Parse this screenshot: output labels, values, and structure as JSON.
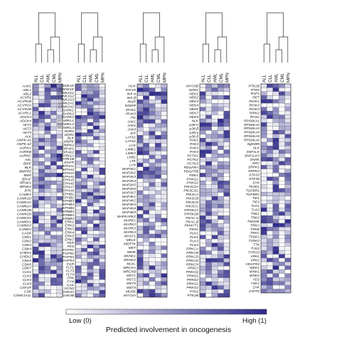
{
  "chart_data": {
    "type": "heatmap",
    "columns": [
      "ALL",
      "CLL",
      "AML",
      "CML",
      "MPN"
    ],
    "colorbar": {
      "low_label": "Low (0)",
      "high_label": "High (1)",
      "title": "Predicted involvement in oncogenesis",
      "low_color": "#ffffff",
      "high_color": "#2e2a8c"
    },
    "panels": [
      {
        "rows": [
          "AAK1",
          "ABL1",
          "ABL2",
          "ACVR1",
          "ACVR1B",
          "ACVR2A",
          "ACVR2B",
          "ACVRL1",
          "ADCK3",
          "ADCK4",
          "AKT1",
          "AKT2",
          "AKT3",
          "ALK",
          "ANPK-α1",
          "ANPK-α2",
          "AURKA",
          "AURKB",
          "AURKC",
          "AXL",
          "BIKE",
          "BLK",
          "BMPR2",
          "BMX",
          "BRAF",
          "BRSK1",
          "BRSK2",
          "BTK",
          "CAMK1",
          "CAMK1D",
          "CAMK1G",
          "CAMK2A",
          "CAMK2B",
          "CAMK2D",
          "CAMK2G",
          "CAMKK1",
          "CAMKK2",
          "CAMKV",
          "CASK",
          "CDK1",
          "CDK2",
          "CDK3",
          "CDK4",
          "CHEK1",
          "CHEK2",
          "CDK5",
          "CDK6",
          "CDK7",
          "CLK1",
          "CLK2",
          "CLK3",
          "CLK4",
          "CSF1R",
          "CSK",
          "CSNK1A1L"
        ]
      },
      {
        "rows": [
          "CSNK1D",
          "CSNK1E",
          "CSNK1G1",
          "CSNK1G2",
          "CSNK1G3",
          "CSNK2A1",
          "CSNK2A2",
          "DAPK1",
          "DAPK2",
          "DAPK3",
          "DCAMKL1",
          "DCAMKL2",
          "DCAMKL3",
          "DDR1",
          "DDR2",
          "DLK",
          "DMPK",
          "DMPK2",
          "DRAK1",
          "DRAK2",
          "DYRK1A",
          "DYRK1B",
          "EGFR",
          "EPHA1",
          "EPHA2",
          "EPHA3",
          "EPHA4",
          "EPHA5",
          "EPHA6",
          "EPHA7",
          "EPHA8",
          "EPHB1",
          "EPHB2",
          "EPHB3",
          "EPHB4",
          "EPHB6",
          "ERBB2",
          "ERBB3",
          "ERBB4",
          "ERK1",
          "ERK2",
          "ERK3",
          "ERK4",
          "ERK5",
          "ERK7",
          "FER",
          "FES",
          "FGFR1",
          "FGFR2",
          "FGFR3",
          "FGFR4",
          "FGR",
          "FLT1",
          "FLT3",
          "FLT4",
          "FRK",
          "FYN",
          "GAK",
          "GCN2",
          "GSK3A",
          "GSK3B"
        ]
      },
      {
        "rows": [
          "HCK",
          "IGF1R",
          "IKK-α",
          "IKK-β",
          "INSR",
          "INSRR",
          "IRAK1",
          "IRAK3",
          "ITK",
          "JAK1",
          "JAK2",
          "JAK3",
          "KIT",
          "LATS1",
          "LATS2",
          "LCK",
          "LIMK1",
          "LIMK2",
          "LKB1",
          "LTK",
          "LYN",
          "MAP2K1",
          "MAP2K2",
          "MAP2K3",
          "MAP2K4",
          "MAP2K5",
          "MAP2K6",
          "MAP2K7",
          "MAP4K1",
          "MAP4K2",
          "MAP4K3",
          "MAP4K4",
          "MAP4K5",
          "MAPKAPK2",
          "MARK1",
          "MARK2",
          "MARK3",
          "MARK4",
          "MAST1",
          "MELK",
          "MERTK",
          "MET",
          "MINK",
          "MKNK1",
          "MKNK2",
          "MLKL",
          "MRCKA",
          "MRCKB",
          "MST1",
          "MST2",
          "MST3",
          "MST4",
          "MUSK",
          "MYO3A"
        ]
      },
      {
        "rows": [
          "MYO3B",
          "NDR2",
          "NEK1",
          "NEK2",
          "NEK3",
          "NEK4",
          "NEK6",
          "NEK7",
          "NEK9",
          "NLK",
          "p38-α",
          "p38-β",
          "p38-γ",
          "p38-δ",
          "PAK1",
          "PAK2",
          "PAK3",
          "PAK4",
          "PCTK1",
          "PCTK2",
          "PCTK3",
          "PDGFRA",
          "PDGFRB",
          "PDK1",
          "PHKG1",
          "PHKG2",
          "PIK3C2A",
          "PIK3C2G",
          "PIK3CA",
          "PIK3CB",
          "PIK3CD",
          "PIK3CG",
          "PIP5K2A",
          "PIP5K2B",
          "PKAC-α",
          "PKAC-β",
          "PKMYT1",
          "PKN1",
          "PLK1",
          "PLK2",
          "PLK3",
          "PLK4",
          "PRKCA",
          "PRKCB",
          "PRKCD",
          "PRKCE",
          "PRKCH",
          "PRKCI",
          "PRKCQ",
          "PRKD1",
          "PRKD2",
          "PRKG1",
          "PRKG2",
          "PTK2",
          "PTK2B"
        ]
      },
      {
        "rows": [
          "PTK2B",
          "PTK6",
          "RAF1",
          "RET",
          "RIOK1",
          "RIOK2",
          "RIOK3",
          "RIPK2",
          "ROS1",
          "RPS6KA1",
          "RPS6KA2",
          "RPS6KA3",
          "RPS6KA4",
          "RPS6KA5",
          "RPS6KA6",
          "SgK085",
          "SLK",
          "SNF1LK",
          "SNF1LK2",
          "SNRK",
          "SRC",
          "SRPK1",
          "SRPK2",
          "STK33",
          "STK38",
          "SYK",
          "TESK1",
          "TGFBR1",
          "TGFBR2",
          "TIE1",
          "TIE2",
          "TLK1",
          "TLK2",
          "TNK1",
          "TNK2",
          "TNNI3K",
          "TRKA",
          "TRKB",
          "TRKC",
          "TSSK1",
          "TSSK2",
          "TTK",
          "TYK2",
          "TYRO3",
          "VRK1",
          "VRK2",
          "VEGFR2",
          "WEE1",
          "WNK1",
          "WNK3",
          "YES",
          "YSK1",
          "ZAK",
          "ZAP70"
        ]
      }
    ]
  }
}
